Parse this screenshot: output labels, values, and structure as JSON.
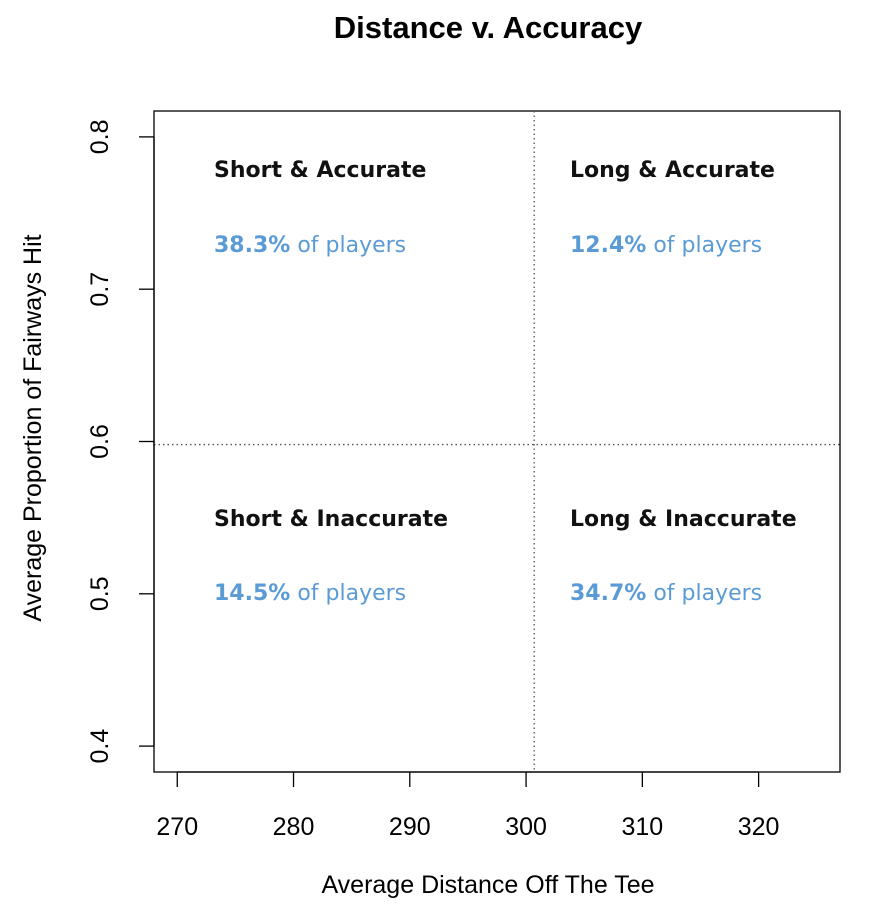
{
  "chart_data": {
    "type": "scatter",
    "title": "Distance v. Accuracy",
    "xlabel": "Average Distance Off The Tee",
    "ylabel": "Average Proportion of Fairways Hit",
    "xlim": [
      268,
      327
    ],
    "ylim": [
      0.383,
      0.817
    ],
    "xticks": [
      270,
      280,
      290,
      300,
      310,
      320
    ],
    "yticks": [
      0.4,
      0.5,
      0.6,
      0.7,
      0.8
    ],
    "xtick_labels": [
      "270",
      "280",
      "290",
      "300",
      "310",
      "320"
    ],
    "ytick_labels": [
      "0.4",
      "0.5",
      "0.6",
      "0.7",
      "0.8"
    ],
    "reference_lines": {
      "x": 300.7,
      "y": 0.598
    },
    "grid": false,
    "quadrants": [
      {
        "key": "short-accurate",
        "title": "Short & Accurate",
        "pct": "38.3%",
        "suffix": " of players"
      },
      {
        "key": "long-accurate",
        "title": "Long & Accurate",
        "pct": "12.4%",
        "suffix": " of players"
      },
      {
        "key": "short-inaccurate",
        "title": "Short & Inaccurate",
        "pct": "14.5%",
        "suffix": " of players"
      },
      {
        "key": "long-inaccurate",
        "title": "Long & Inaccurate",
        "pct": "34.7%",
        "suffix": " of players"
      }
    ],
    "colors": {
      "stat_text": "#5b9bd5",
      "axis": "#000000",
      "reference_line": "#555555"
    }
  }
}
